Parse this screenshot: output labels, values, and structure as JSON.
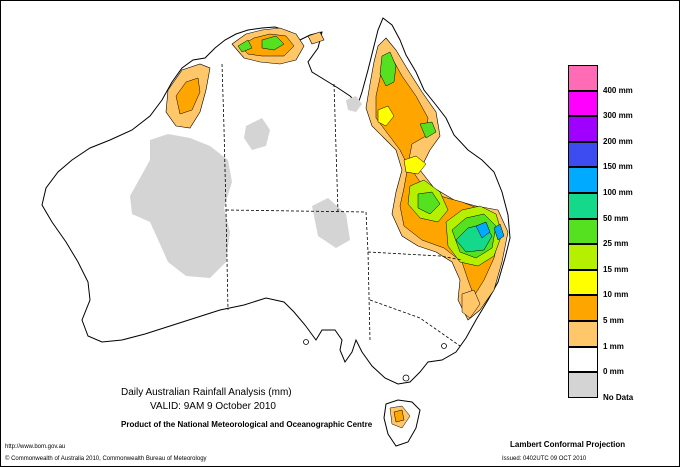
{
  "title_line1": "Daily Australian Rainfall Analysis (mm)",
  "title_line2": "VALID: 9AM  9 October 2010",
  "title_line3": "Product of the National Meteorological and Oceanographic Centre",
  "url": "http://www.bom.gov.au",
  "copyright": "© Commonwealth of Australia 2010, Commonwealth Bureau of Meteorology",
  "projection": "Lambert Conformal Projection",
  "issued": "Issued: 0402UTC 09 OCT 2010",
  "legend": [
    {
      "label": "400 mm",
      "color": "#ff6bb5"
    },
    {
      "label": "300 mm",
      "color": "#ff00ff"
    },
    {
      "label": "200 mm",
      "color": "#a000ff"
    },
    {
      "label": "150 mm",
      "color": "#3c4cf0"
    },
    {
      "label": "100 mm",
      "color": "#00aaff"
    },
    {
      "label": "50 mm",
      "color": "#14d88a"
    },
    {
      "label": "25 mm",
      "color": "#55e020"
    },
    {
      "label": "15 mm",
      "color": "#b4f000"
    },
    {
      "label": "10 mm",
      "color": "#ffff00"
    },
    {
      "label": "5 mm",
      "color": "#ffa500"
    },
    {
      "label": "1 mm",
      "color": "#ffc66a"
    },
    {
      "label": "0 mm",
      "color": "#ffffff"
    },
    {
      "label": "No Data",
      "color": "#d4d4d4"
    }
  ]
}
